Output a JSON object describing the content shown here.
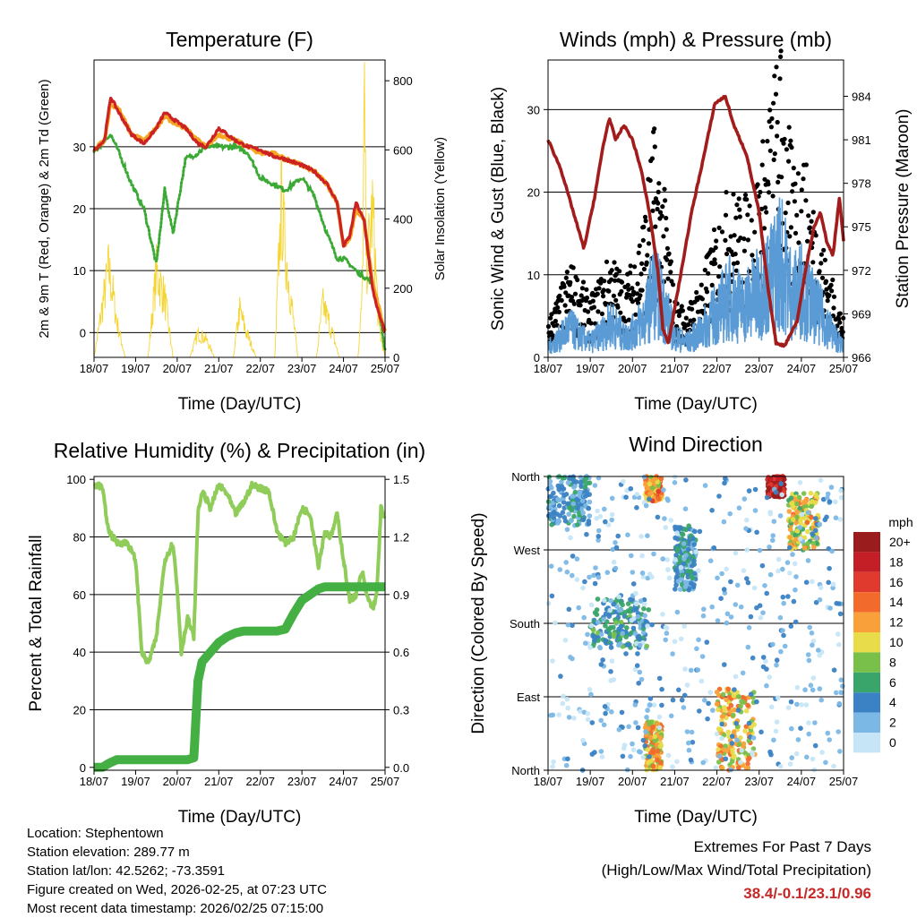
{
  "colors": {
    "temp_2m": "#f5a623",
    "temp_9m": "#cc2222",
    "dewpoint": "#3aaa35",
    "solar": "#f5d533",
    "sonic_wind": "#5b9bd5",
    "gust": "#000000",
    "pressure": "#a31c1c",
    "rh": "#8fcc5a",
    "precip": "#44b044",
    "extremes": "#c62828"
  },
  "x_ticks": [
    "18/07",
    "19/07",
    "20/07",
    "21/07",
    "22/07",
    "23/07",
    "24/07",
    "25/07"
  ],
  "x_label": "Time (Day/UTC)",
  "chart_data": [
    {
      "type": "line",
      "title": "Temperature (F)",
      "ylabel": "2m & 9m T (Red, Orange) & 2m Td (Green)",
      "y2label": "Solar Insolation (Yellow)",
      "ylim": [
        -4,
        44
      ],
      "yticks": [
        0,
        10,
        20,
        30
      ],
      "y2lim": [
        0,
        860
      ],
      "y2ticks": [
        0,
        200,
        400,
        600,
        800
      ],
      "x": [
        0,
        0.25,
        0.4,
        0.6,
        0.9,
        1.2,
        1.5,
        1.7,
        1.9,
        2.2,
        2.5,
        2.7,
        3.0,
        3.4,
        3.7,
        4.0,
        4.3,
        4.6,
        5.0,
        5.3,
        5.6,
        5.85,
        6.0,
        6.15,
        6.3,
        6.5,
        6.7,
        6.85,
        7.0
      ],
      "series": [
        {
          "name": "2m T",
          "values": [
            29.5,
            31,
            37,
            36,
            32,
            31,
            33,
            35,
            34,
            33,
            31,
            30,
            32,
            31,
            30,
            29,
            29,
            28,
            27,
            26,
            24,
            21,
            14,
            15,
            20,
            18,
            8,
            4,
            0
          ]
        },
        {
          "name": "9m T",
          "values": [
            29.5,
            31,
            38,
            35.5,
            32,
            30.5,
            33,
            35.5,
            34.5,
            33,
            30.5,
            30,
            33,
            31,
            30,
            29.5,
            28.5,
            28,
            27,
            26,
            24,
            21,
            14,
            15.5,
            21,
            18,
            7,
            3,
            0
          ]
        },
        {
          "name": "2m Td",
          "values": [
            29,
            31,
            32,
            29,
            24,
            20,
            11,
            23,
            16,
            28,
            29,
            30,
            30,
            30,
            29,
            25,
            24,
            23,
            25,
            22,
            16,
            12,
            12,
            11,
            10,
            9,
            8,
            4,
            -3
          ]
        }
      ],
      "solar_series": {
        "name": "Solar Insolation",
        "x": [
          0,
          0.35,
          0.45,
          0.55,
          0.75,
          1.3,
          1.5,
          1.7,
          1.9,
          2.3,
          2.5,
          2.7,
          2.9,
          3.35,
          3.5,
          3.65,
          3.9,
          4.35,
          4.5,
          4.65,
          4.9,
          5.35,
          5.5,
          5.65,
          5.9,
          6.35,
          6.45,
          6.5,
          6.55,
          6.7,
          6.85,
          7.0
        ],
        "values": [
          0,
          300,
          220,
          120,
          0,
          0,
          290,
          200,
          0,
          0,
          80,
          60,
          0,
          0,
          160,
          90,
          0,
          0,
          520,
          300,
          0,
          0,
          180,
          120,
          0,
          0,
          200,
          830,
          300,
          500,
          100,
          0
        ]
      }
    },
    {
      "type": "line",
      "title": "Winds (mph) & Pressure (mb)",
      "ylabel": "Sonic Wind & Gust (Blue, Black)",
      "y2label": "Station Pressure (Maroon)",
      "ylim": [
        0,
        36
      ],
      "yticks": [
        0,
        10,
        20,
        30
      ],
      "y2lim": [
        966,
        986.5
      ],
      "y2ticks": [
        966,
        969,
        972,
        975,
        978,
        981,
        984
      ],
      "series": [
        {
          "name": "Sonic Wind",
          "x": [
            0,
            0.3,
            0.5,
            0.8,
            1.0,
            1.3,
            1.5,
            1.8,
            2.0,
            2.3,
            2.5,
            2.8,
            3.0,
            3.3,
            3.6,
            4.0,
            4.3,
            4.6,
            5.0,
            5.3,
            5.5,
            5.8,
            6.0,
            6.3,
            6.5,
            6.8,
            7.0
          ],
          "values": [
            2,
            4,
            6,
            4,
            3,
            5,
            7,
            4,
            5,
            8,
            14,
            9,
            4,
            3,
            5,
            9,
            12,
            10,
            13,
            16,
            20,
            12,
            14,
            10,
            8,
            4,
            2
          ]
        },
        {
          "name": "Gust",
          "x": [
            0,
            0.3,
            0.5,
            0.8,
            1.0,
            1.3,
            1.5,
            1.8,
            2.0,
            2.3,
            2.5,
            2.8,
            3.0,
            3.3,
            3.6,
            4.0,
            4.3,
            4.6,
            5.0,
            5.3,
            5.5,
            5.8,
            6.0,
            6.3,
            6.5,
            6.8,
            7.0
          ],
          "values": [
            4,
            7,
            10,
            8,
            6,
            9,
            11,
            8,
            10,
            16,
            24,
            16,
            6,
            5,
            8,
            14,
            18,
            16,
            20,
            28,
            33,
            20,
            22,
            16,
            12,
            7,
            4
          ]
        },
        {
          "name": "Station Pressure",
          "x": [
            0,
            0.3,
            0.6,
            0.85,
            1.1,
            1.3,
            1.45,
            1.6,
            1.8,
            2.0,
            2.2,
            2.4,
            2.6,
            2.72,
            2.85,
            3.1,
            3.4,
            3.7,
            3.95,
            4.2,
            4.4,
            4.7,
            5.0,
            5.2,
            5.4,
            5.6,
            5.9,
            6.1,
            6.3,
            6.45,
            6.6,
            6.75,
            6.9,
            7.0
          ],
          "values": [
            981,
            979,
            976,
            973.5,
            977,
            980.5,
            982.5,
            981,
            982,
            981,
            979,
            976,
            972,
            968,
            967,
            971,
            976,
            980,
            983.5,
            984,
            982,
            980,
            976,
            971,
            967,
            966.8,
            968.5,
            972,
            975,
            976,
            974,
            973,
            977,
            974
          ]
        }
      ]
    },
    {
      "type": "line",
      "title": "Relative Humidity (%) & Precipitation (in)",
      "ylabel": "Percent & Total Rainfall",
      "ylim": [
        -1,
        101
      ],
      "yticks": [
        0,
        20,
        40,
        60,
        80,
        100
      ],
      "y2lim": [
        -0.015,
        1.515
      ],
      "y2ticks": [
        "0.0",
        "0.3",
        "0.6",
        "0.9",
        "1.2",
        "1.5"
      ],
      "x": [
        0,
        0.1,
        0.2,
        0.35,
        0.55,
        0.8,
        1.0,
        1.15,
        1.3,
        1.5,
        1.7,
        1.9,
        2.0,
        2.1,
        2.25,
        2.4,
        2.5,
        2.6,
        2.8,
        3.0,
        3.2,
        3.4,
        3.6,
        3.8,
        4.0,
        4.2,
        4.4,
        4.6,
        4.8,
        5.0,
        5.2,
        5.4,
        5.55,
        5.7,
        5.85,
        6.0,
        6.15,
        6.3,
        6.45,
        6.55,
        6.7,
        6.8,
        6.9,
        7.0
      ],
      "series": [
        {
          "name": "Relative Humidity",
          "values": [
            98,
            98,
            97,
            82,
            78,
            78,
            72,
            40,
            36,
            45,
            72,
            78,
            62,
            40,
            52,
            45,
            88,
            96,
            90,
            98,
            95,
            88,
            92,
            98,
            97,
            96,
            82,
            78,
            80,
            90,
            88,
            70,
            82,
            80,
            88,
            72,
            58,
            60,
            68,
            60,
            55,
            60,
            90,
            86
          ]
        },
        {
          "name": "Total Precipitation",
          "values": [
            0,
            0,
            0,
            0.02,
            0.04,
            0.04,
            0.04,
            0.04,
            0.04,
            0.04,
            0.04,
            0.04,
            0.04,
            0.04,
            0.04,
            0.05,
            0.45,
            0.55,
            0.6,
            0.65,
            0.68,
            0.7,
            0.71,
            0.71,
            0.71,
            0.71,
            0.71,
            0.72,
            0.8,
            0.87,
            0.9,
            0.93,
            0.94,
            0.94,
            0.94,
            0.94,
            0.94,
            0.94,
            0.94,
            0.94,
            0.94,
            0.94,
            0.94,
            0.94
          ]
        }
      ]
    },
    {
      "type": "scatter",
      "title": "Wind Direction",
      "ylabel": "Direction (Colored By Speed)",
      "ylim": [
        0,
        360
      ],
      "yticks": [
        0,
        90,
        180,
        270,
        360
      ],
      "ytick_labels": [
        "North",
        "East",
        "South",
        "West",
        "North"
      ],
      "legend_title": "mph",
      "legend_labels": [
        "20+",
        "18",
        "16",
        "14",
        "12",
        "10",
        "8",
        "6",
        "4",
        "2",
        "0"
      ],
      "legend_colors": [
        "#9b1c1c",
        "#c41f27",
        "#e03a2f",
        "#f26a2c",
        "#f9a03a",
        "#e8dc4a",
        "#78c04a",
        "#3aa56a",
        "#3b82c4",
        "#7cb8e6",
        "#c6e6f7"
      ],
      "clusters": [
        {
          "label": "north wind band",
          "x0": 0,
          "x1": 1.0,
          "dir0": 300,
          "dir1": 360,
          "speed": 4
        },
        {
          "label": "south wind band",
          "x0": 1.0,
          "x1": 2.4,
          "dir0": 150,
          "dir1": 210,
          "speed": 5
        },
        {
          "label": "east wind band",
          "x0": 2.3,
          "x1": 2.7,
          "dir0": 0,
          "dir1": 60,
          "speed": 11
        },
        {
          "label": "north wind band",
          "x0": 2.3,
          "x1": 2.7,
          "dir0": 330,
          "dir1": 360,
          "speed": 12
        },
        {
          "label": "west wind band",
          "x0": 3.0,
          "x1": 3.5,
          "dir0": 220,
          "dir1": 300,
          "speed": 4
        },
        {
          "label": "east wind band",
          "x0": 4.0,
          "x1": 4.9,
          "dir0": 0,
          "dir1": 100,
          "speed": 11
        },
        {
          "label": "north wind band",
          "x0": 5.2,
          "x1": 5.6,
          "dir0": 335,
          "dir1": 360,
          "speed": 19
        },
        {
          "label": "northwest wind band",
          "x0": 5.7,
          "x1": 6.4,
          "dir0": 270,
          "dir1": 340,
          "speed": 10
        },
        {
          "label": "scattered light winds",
          "x0": 0,
          "x1": 7.0,
          "dir0": 0,
          "dir1": 360,
          "speed": 2
        }
      ]
    }
  ],
  "station": {
    "location": "Location: Stephentown",
    "elevation": "Station elevation: 289.77 m",
    "latlon": "Station lat/lon: 42.5262; -73.3591",
    "created": "Figure created on Wed, 2026-02-25, at 07:23 UTC",
    "timestamp": "Most recent data timestamp: 2026/02/25 07:15:00"
  },
  "extremes": {
    "title": "Extremes For Past 7 Days",
    "subtitle": "(High/Low/Max Wind/Total Precipitation)",
    "value": "38.4/-0.1/23.1/0.96"
  }
}
